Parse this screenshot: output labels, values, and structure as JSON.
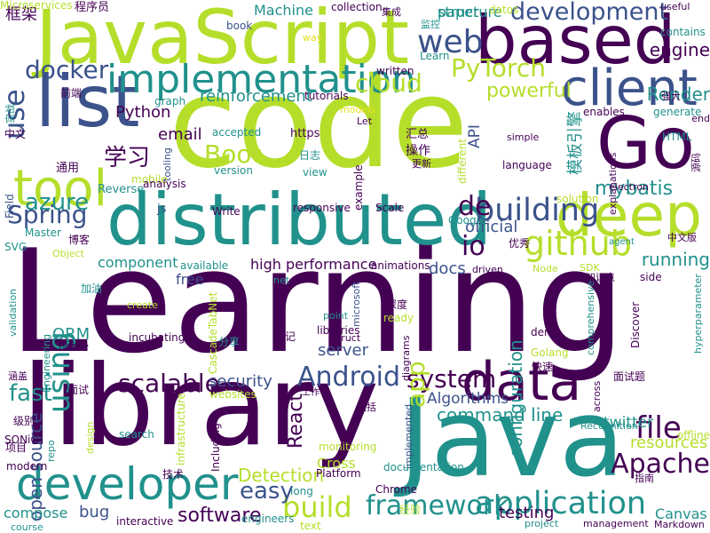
{
  "palette": {
    "dark_purple": "#440154",
    "indigo": "#3b528b",
    "teal": "#21918c",
    "green": "#5ec962",
    "lime": "#b5de2b",
    "yellow": "#e4e11a"
  },
  "words": [
    {
      "text": "Learning",
      "color": "dark_purple"
    },
    {
      "text": "code",
      "color": "lime"
    },
    {
      "text": "library",
      "color": "dark_purple"
    },
    {
      "text": "Java",
      "color": "teal"
    },
    {
      "text": "JavaScript",
      "color": "lime"
    },
    {
      "text": "distributed",
      "color": "teal"
    },
    {
      "text": "based",
      "color": "dark_purple"
    },
    {
      "text": "Go",
      "color": "dark_purple"
    },
    {
      "text": "list",
      "color": "indigo"
    },
    {
      "text": "client",
      "color": "indigo"
    },
    {
      "text": "deep",
      "color": "lime"
    },
    {
      "text": "data",
      "color": "dark_purple"
    },
    {
      "text": "developer",
      "color": "teal"
    },
    {
      "text": "tool",
      "color": "lime"
    },
    {
      "text": "implementation",
      "color": "teal"
    },
    {
      "text": "framework",
      "color": "teal"
    },
    {
      "text": "application",
      "color": "teal"
    },
    {
      "text": "github",
      "color": "lime"
    },
    {
      "text": "building",
      "color": "indigo"
    },
    {
      "text": "build",
      "color": "lime"
    },
    {
      "text": "web",
      "color": "indigo"
    },
    {
      "text": "cloud",
      "color": "lime"
    },
    {
      "text": "docker",
      "color": "indigo"
    },
    {
      "text": "development",
      "color": "indigo"
    },
    {
      "text": "PyTorch",
      "color": "lime"
    },
    {
      "text": "Spring",
      "color": "indigo"
    },
    {
      "text": "Boot",
      "color": "lime"
    },
    {
      "text": "Android",
      "color": "indigo"
    },
    {
      "text": "scalable",
      "color": "dark_purple"
    },
    {
      "text": "system",
      "color": "dark_purple"
    },
    {
      "text": "file",
      "color": "dark_purple"
    },
    {
      "text": "Apache",
      "color": "dark_purple"
    },
    {
      "text": "command line",
      "color": "teal"
    },
    {
      "text": "easy",
      "color": "indigo"
    },
    {
      "text": "azure",
      "color": "teal"
    },
    {
      "text": "use",
      "color": "indigo"
    },
    {
      "text": "using",
      "color": "teal"
    },
    {
      "text": "fast",
      "color": "teal"
    },
    {
      "text": "io",
      "color": "dark_purple"
    },
    {
      "text": "de",
      "color": "dark_purple"
    },
    {
      "text": "app",
      "color": "lime"
    },
    {
      "text": "powerful",
      "color": "lime"
    },
    {
      "text": "open source",
      "color": "indigo"
    },
    {
      "text": "ORM",
      "color": "teal"
    },
    {
      "text": "React",
      "color": "dark_purple"
    },
    {
      "text": "Detection",
      "color": "lime"
    },
    {
      "text": "software",
      "color": "dark_purple"
    },
    {
      "text": "running",
      "color": "teal"
    },
    {
      "text": "resources",
      "color": "lime"
    },
    {
      "text": "mybatis",
      "color": "teal"
    },
    {
      "text": "engine",
      "color": "dark_purple"
    },
    {
      "text": "Render",
      "color": "teal"
    },
    {
      "text": "Python",
      "color": "dark_purple"
    },
    {
      "text": "reinforcement",
      "color": "teal"
    },
    {
      "text": "email",
      "color": "dark_purple"
    },
    {
      "text": "security",
      "color": "indigo"
    },
    {
      "text": "API",
      "color": "indigo"
    },
    {
      "text": "official",
      "color": "indigo"
    },
    {
      "text": "docs",
      "color": "indigo"
    },
    {
      "text": "configuration",
      "color": "teal"
    },
    {
      "text": "server",
      "color": "indigo"
    },
    {
      "text": "testing",
      "color": "dark_purple"
    },
    {
      "text": "Algorithms",
      "color": "indigo"
    },
    {
      "text": "twitter",
      "color": "teal"
    },
    {
      "text": "Canvas",
      "color": "teal"
    },
    {
      "text": "Cross",
      "color": "lime"
    },
    {
      "text": "bug",
      "color": "indigo"
    },
    {
      "text": "compose",
      "color": "teal"
    },
    {
      "text": "component",
      "color": "teal"
    },
    {
      "text": "high performance",
      "color": "dark_purple"
    },
    {
      "text": "free",
      "color": "indigo"
    },
    {
      "text": "Machine",
      "color": "teal"
    },
    {
      "text": "structure",
      "color": "teal"
    },
    {
      "text": "paper",
      "color": "teal"
    },
    {
      "text": "框架",
      "color": "dark_purple"
    },
    {
      "text": "程序员",
      "color": "dark_purple"
    },
    {
      "text": "book",
      "color": "indigo"
    },
    {
      "text": "collection",
      "color": "dark_purple"
    },
    {
      "text": "集成",
      "color": "dark_purple"
    },
    {
      "text": "监控",
      "color": "teal"
    },
    {
      "text": "datos",
      "color": "lime"
    },
    {
      "text": "useful",
      "color": "dark_purple"
    },
    {
      "text": "contains",
      "color": "teal"
    },
    {
      "text": "way",
      "color": "yellow"
    },
    {
      "text": "Learn",
      "color": "teal"
    },
    {
      "text": "written",
      "color": "dark_purple"
    },
    {
      "text": "强大",
      "color": "dark_purple"
    },
    {
      "text": "前端",
      "color": "dark_purple"
    },
    {
      "text": "实战",
      "color": "teal"
    },
    {
      "text": "graph",
      "color": "teal"
    },
    {
      "text": "tutorials",
      "color": "dark_purple"
    },
    {
      "text": "models",
      "color": "yellow"
    },
    {
      "text": "enables",
      "color": "dark_purple"
    },
    {
      "text": "generate",
      "color": "teal"
    },
    {
      "text": "HTML",
      "color": "teal"
    },
    {
      "text": "end",
      "color": "dark_purple"
    },
    {
      "text": "accepted",
      "color": "teal"
    },
    {
      "text": "https",
      "color": "dark_purple"
    },
    {
      "text": "Let",
      "color": "dark_purple"
    },
    {
      "text": "汇总",
      "color": "dark_purple"
    },
    {
      "text": "中文",
      "color": "dark_purple"
    },
    {
      "text": "学习",
      "color": "dark_purple"
    },
    {
      "text": "通用",
      "color": "dark_purple"
    },
    {
      "text": "tooling",
      "color": "indigo"
    },
    {
      "text": "mobile",
      "color": "lime"
    },
    {
      "text": "日志",
      "color": "teal"
    },
    {
      "text": "view",
      "color": "teal"
    },
    {
      "text": "version",
      "color": "teal"
    },
    {
      "text": "操作",
      "color": "dark_purple"
    },
    {
      "text": "更新",
      "color": "dark_purple"
    },
    {
      "text": "different",
      "color": "lime"
    },
    {
      "text": "模板引擎",
      "color": "teal"
    },
    {
      "text": "simple",
      "color": "dark_purple"
    },
    {
      "text": "explanations",
      "color": "dark_purple"
    },
    {
      "text": "language",
      "color": "dark_purple"
    },
    {
      "text": "源码",
      "color": "dark_purple"
    },
    {
      "text": "Field",
      "color": "indigo"
    },
    {
      "text": "Reverse",
      "color": "teal"
    },
    {
      "text": "analysis",
      "color": "dark_purple"
    },
    {
      "text": "example",
      "color": "dark_purple"
    },
    {
      "text": "electron",
      "color": "dark_purple"
    },
    {
      "text": "solution",
      "color": "lime"
    },
    {
      "text": "js",
      "color": "indigo"
    },
    {
      "text": "Write",
      "color": "dark_purple"
    },
    {
      "text": "responsive",
      "color": "dark_purple"
    },
    {
      "text": "Scale",
      "color": "dark_purple"
    },
    {
      "text": "Google",
      "color": "teal"
    },
    {
      "text": "Master",
      "color": "teal"
    },
    {
      "text": "SVG",
      "color": "teal"
    },
    {
      "text": "博客",
      "color": "dark_purple"
    },
    {
      "text": "Object",
      "color": "lime"
    },
    {
      "text": "agent",
      "color": "teal"
    },
    {
      "text": "中文版",
      "color": "dark_purple"
    },
    {
      "text": "优秀",
      "color": "dark_purple"
    },
    {
      "text": "animations",
      "color": "dark_purple"
    },
    {
      "text": "driven",
      "color": "dark_purple"
    },
    {
      "text": "Node",
      "color": "lime"
    },
    {
      "text": "SDK",
      "color": "lime"
    },
    {
      "text": "side",
      "color": "dark_purple"
    },
    {
      "text": "知识点",
      "color": "dark_purple"
    },
    {
      "text": "available",
      "color": "teal"
    },
    {
      "text": "net",
      "color": "teal"
    },
    {
      "text": "microsoft",
      "color": "indigo"
    },
    {
      "text": "加油",
      "color": "teal"
    },
    {
      "text": "validation",
      "color": "teal"
    },
    {
      "text": "create",
      "color": "lime"
    },
    {
      "text": "深度",
      "color": "dark_purple"
    },
    {
      "text": "ready",
      "color": "lime"
    },
    {
      "text": "Engineering",
      "color": "teal"
    },
    {
      "text": "point",
      "color": "teal"
    },
    {
      "text": "libraries",
      "color": "dark_purple"
    },
    {
      "text": "demo",
      "color": "dark_purple"
    },
    {
      "text": "Golang",
      "color": "lime"
    },
    {
      "text": "comprehensive",
      "color": "teal"
    },
    {
      "text": "hyperparameter",
      "color": "teal"
    },
    {
      "text": "incubating",
      "color": "dark_purple"
    },
    {
      "text": "CascadeTabNet",
      "color": "lime"
    },
    {
      "text": "笔记",
      "color": "dark_purple"
    },
    {
      "text": "Struct",
      "color": "dark_purple"
    },
    {
      "text": "Discover",
      "color": "dark_purple"
    },
    {
      "text": "home",
      "color": "dark_purple"
    },
    {
      "text": "分享",
      "color": "teal"
    },
    {
      "text": "diagrams",
      "color": "dark_purple"
    },
    {
      "text": "快速",
      "color": "dark_purple"
    },
    {
      "text": "涵盖",
      "color": "dark_purple"
    },
    {
      "text": "面试",
      "color": "dark_purple"
    },
    {
      "text": "websites",
      "color": "lime"
    },
    {
      "text": "工作",
      "color": "dark_purple"
    },
    {
      "text": "包括",
      "color": "dark_purple"
    },
    {
      "text": "across",
      "color": "dark_purple"
    },
    {
      "text": "面试题",
      "color": "dark_purple"
    },
    {
      "text": "级别",
      "color": "dark_purple"
    },
    {
      "text": "infrastructure",
      "color": "lime"
    },
    {
      "text": "Recognition",
      "color": "teal"
    },
    {
      "text": "offline",
      "color": "lime"
    },
    {
      "text": "SONiC",
      "color": "dark_purple"
    },
    {
      "text": "search",
      "color": "teal"
    },
    {
      "text": "项目",
      "color": "dark_purple"
    },
    {
      "text": "repo",
      "color": "teal"
    },
    {
      "text": "Including",
      "color": "dark_purple"
    },
    {
      "text": "monitoring",
      "color": "lime"
    },
    {
      "text": "design",
      "color": "lime"
    },
    {
      "text": "implemented",
      "color": "indigo"
    },
    {
      "text": "documentation",
      "color": "teal"
    },
    {
      "text": "指南",
      "color": "dark_purple"
    },
    {
      "text": "modern",
      "color": "dark_purple"
    },
    {
      "text": "技术",
      "color": "dark_purple"
    },
    {
      "text": "Platform",
      "color": "dark_purple"
    },
    {
      "text": "long",
      "color": "teal"
    },
    {
      "text": "Chrome",
      "color": "dark_purple"
    },
    {
      "text": "经验",
      "color": "lime"
    },
    {
      "text": "text",
      "color": "lime"
    },
    {
      "text": "interactive",
      "color": "dark_purple"
    },
    {
      "text": "engineers",
      "color": "teal"
    },
    {
      "text": "project",
      "color": "teal"
    },
    {
      "text": "management",
      "color": "dark_purple"
    },
    {
      "text": "Markdown",
      "color": "dark_purple"
    },
    {
      "text": "course",
      "color": "teal"
    },
    {
      "text": "Microservices",
      "color": "lime"
    }
  ]
}
